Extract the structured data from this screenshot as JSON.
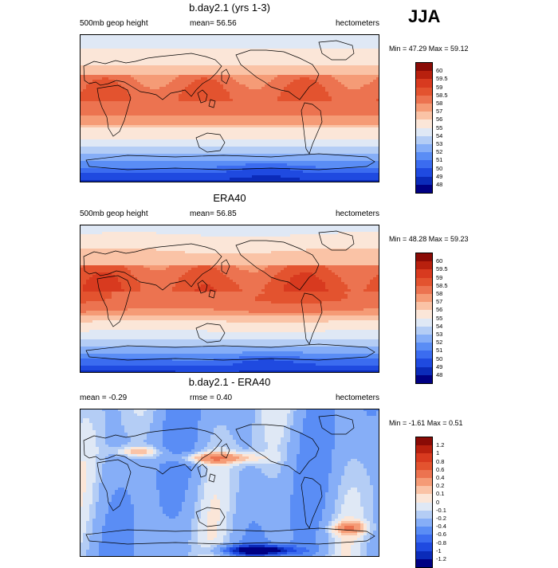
{
  "season": "JJA",
  "panels": [
    {
      "title": "b.day2.1 (yrs 1-3)",
      "left_label": "500mb geop height",
      "center_label": "mean=  56.56",
      "right_label": "hectometers",
      "minmax": "Min =  47.29 Max =  59.12",
      "field": "model",
      "colorbar": {
        "colors": [
          "#000083",
          "#0b2bb9",
          "#1f4ae0",
          "#3b6cf0",
          "#5a8df5",
          "#86aef7",
          "#b4cdf5",
          "#dfe8f5",
          "#fbe6d8",
          "#fac3a6",
          "#f59b76",
          "#ec7350",
          "#e3532f",
          "#d83a1f",
          "#b8200e",
          "#8a0b06"
        ],
        "tick_labels": [
          "48",
          "49",
          "50",
          "51",
          "52",
          "53",
          "54",
          "55",
          "56",
          "57",
          "58",
          "58.5",
          "59",
          "59.5",
          "60"
        ]
      }
    },
    {
      "title": "ERA40",
      "left_label": "500mb geop height",
      "center_label": "mean=  56.85",
      "right_label": "hectometers",
      "minmax": "Min =  48.28 Max =  59.23",
      "field": "obs",
      "colorbar": {
        "colors": [
          "#000083",
          "#0b2bb9",
          "#1f4ae0",
          "#3b6cf0",
          "#5a8df5",
          "#86aef7",
          "#b4cdf5",
          "#dfe8f5",
          "#fbe6d8",
          "#fac3a6",
          "#f59b76",
          "#ec7350",
          "#e3532f",
          "#d83a1f",
          "#b8200e",
          "#8a0b06"
        ],
        "tick_labels": [
          "48",
          "49",
          "50",
          "51",
          "52",
          "53",
          "54",
          "55",
          "56",
          "57",
          "58",
          "58.5",
          "59",
          "59.5",
          "60"
        ]
      }
    },
    {
      "title": "b.day2.1 - ERA40",
      "left_label": "mean =  -0.29",
      "center_label": "rmse =   0.40",
      "right_label": "hectometers",
      "minmax": "Min =  -1.61 Max =   0.51",
      "field": "diff",
      "colorbar": {
        "colors": [
          "#000083",
          "#0b2bb9",
          "#1f4ae0",
          "#3b6cf0",
          "#5a8df5",
          "#86aef7",
          "#b4cdf5",
          "#dfe8f5",
          "#fbe6d8",
          "#fac3a6",
          "#f59b76",
          "#ec7350",
          "#e3532f",
          "#d83a1f",
          "#b8200e",
          "#8a0b06"
        ],
        "tick_labels": [
          "-1.2",
          "-1",
          "-0.8",
          "-0.6",
          "-0.4",
          "-0.2",
          "-0.1",
          "0",
          "0.1",
          "0.2",
          "0.4",
          "0.6",
          "0.8",
          "1",
          "1.2"
        ]
      }
    }
  ]
}
